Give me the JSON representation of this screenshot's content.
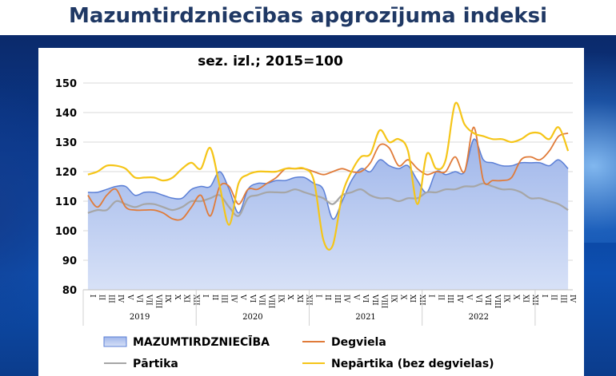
{
  "page_title": "Mazumtirdzniecības apgrozījuma indeksi",
  "colors": {
    "total_fill": "#aec3ee",
    "total_stroke": "#5b7fd6",
    "fuel": "#e07b39",
    "food": "#a6a6a6",
    "nonfood": "#f5c518",
    "grid": "#d9d9d9",
    "title_text": "#1f3864"
  },
  "chart_data": {
    "type": "line",
    "title": "sez. izl.; 2015=100",
    "ylim": [
      80,
      150
    ],
    "yticks": [
      80,
      90,
      100,
      110,
      120,
      130,
      140,
      150
    ],
    "grid": "horizontal",
    "legend_position": "bottom",
    "month_labels": [
      "I",
      "II",
      "III",
      "IV",
      "V",
      "VI",
      "VII",
      "VIII",
      "IX",
      "X",
      "XI",
      "XII"
    ],
    "years": [
      "2019",
      "2020",
      "2021",
      "2022"
    ],
    "series": [
      {
        "name": "MAZUMTIRDZNIECĪBA",
        "kind": "area",
        "values": [
          113,
          113,
          114,
          115,
          115,
          112,
          113,
          113,
          112,
          111,
          111,
          114,
          115,
          115,
          120,
          114,
          106,
          114,
          116,
          116,
          117,
          117,
          118,
          118,
          116,
          114,
          104,
          110,
          117,
          121,
          120,
          124,
          122,
          121,
          122,
          117,
          113,
          120,
          119,
          120,
          120,
          131,
          124,
          123,
          122,
          122,
          123,
          123,
          123,
          122,
          124,
          121
        ]
      },
      {
        "name": "Degviela",
        "kind": "line",
        "values": [
          112,
          108,
          112,
          114,
          108,
          107,
          107,
          107,
          106,
          104,
          104,
          108,
          112,
          105,
          115,
          115,
          109,
          114,
          114,
          116,
          118,
          121,
          121,
          121,
          120,
          119,
          120,
          121,
          120,
          120,
          123,
          129,
          128,
          122,
          124,
          121,
          119,
          120,
          120,
          125,
          120,
          135,
          117,
          117,
          117,
          118,
          124,
          125,
          124,
          127,
          132,
          133
        ]
      },
      {
        "name": "Pārtika",
        "kind": "line",
        "values": [
          106,
          107,
          107,
          110,
          109,
          108,
          109,
          109,
          108,
          107,
          108,
          110,
          110,
          111,
          112,
          108,
          105,
          111,
          112,
          113,
          113,
          113,
          114,
          113,
          112,
          111,
          109,
          112,
          113,
          114,
          112,
          111,
          111,
          110,
          111,
          111,
          113,
          113,
          114,
          114,
          115,
          115,
          116,
          115,
          114,
          114,
          113,
          111,
          111,
          110,
          109,
          107
        ]
      },
      {
        "name": "Nepārtika (bez degvielas)",
        "kind": "line",
        "values": [
          119,
          120,
          122,
          122,
          121,
          118,
          118,
          118,
          117,
          118,
          121,
          123,
          121,
          128,
          115,
          102,
          116,
          119,
          120,
          120,
          120,
          121,
          121,
          121,
          117,
          97,
          95,
          112,
          120,
          125,
          126,
          134,
          130,
          131,
          127,
          109,
          126,
          121,
          124,
          143,
          136,
          133,
          132,
          131,
          131,
          130,
          131,
          133,
          133,
          131,
          135,
          127
        ]
      }
    ]
  }
}
